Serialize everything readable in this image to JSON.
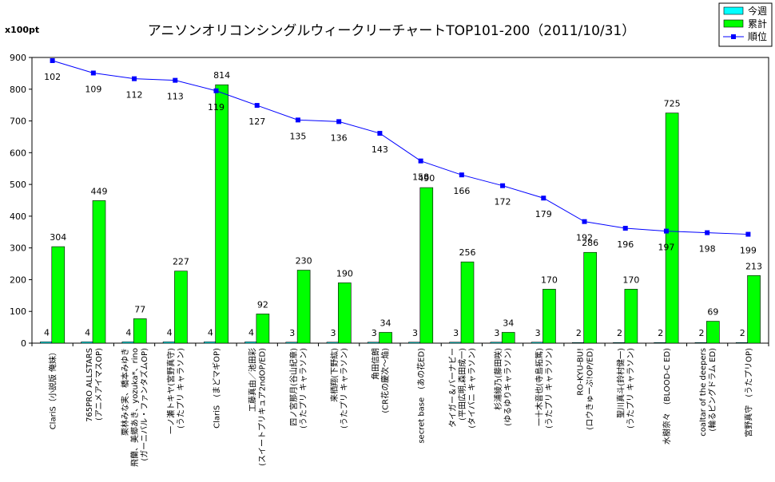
{
  "chart_data": {
    "type": "bar",
    "title": "アニソンオリコンシングルウィークリーチャートTOP101-200（2011/10/31）",
    "unit_label": "x100pt",
    "ylim": [
      0,
      900
    ],
    "yticks": [
      0,
      100,
      200,
      300,
      400,
      500,
      600,
      700,
      800,
      900
    ],
    "categories": [
      [
        "ClariS（小説版 俺妹）"
      ],
      [
        "765PRO ALLSTARS",
        "(アニメアイマスOP)"
      ],
      [
        "栗林みな実、橋本みゆき",
        "飛蘭、美郷あき、yozuka*、rino",
        "(ガーニバル・ファンタズムOP)"
      ],
      [
        "一ノ瀬トキヤ(宮野真守)",
        "(うたプリ キャラソン)"
      ],
      [
        "ClariS　(まどマギOP)"
      ],
      [
        "工藤真由／池田彩",
        "(スイートプリキュア2ndOP/ED)"
      ],
      [
        "四ノ宮那月(谷山紀章)",
        "(うたプリ キャラソン)"
      ],
      [
        "来栖翔(下野紘)",
        "(うたプリ キャラソン)"
      ],
      [
        "角田信朗",
        "(CR花の慶次〜焔)"
      ],
      [
        "secret base　(あの花ED)"
      ],
      [
        "タイガー＆バーナビー",
        "(平田広明,森田成一)",
        "(タイバニ キャラソン)"
      ],
      [
        "杉浦綾乃(藤田咲)",
        "(ゆるゆりキャラソン)"
      ],
      [
        "一十木音也(寺島拓篤)",
        "(うたプリ キャラソン)"
      ],
      [
        "RO-KYU-BU!",
        "(ロウきゅーぶ!OP/ED)"
      ],
      [
        "聖川真斗(鈴村健一)",
        "(うたプリ キャラソン)"
      ],
      [
        "水樹奈々　(BLOOD-C ED)"
      ],
      [
        "coaltar of the deepers",
        "(輪るピングドラム ED)"
      ],
      [
        "宮野真守　(うたプリOP)"
      ]
    ],
    "series": [
      {
        "name": "今週",
        "kind": "bar",
        "values": [
          4,
          4,
          4,
          4,
          4,
          4,
          3,
          3,
          3,
          3,
          3,
          3,
          3,
          2,
          2,
          2,
          2,
          2
        ]
      },
      {
        "name": "累計",
        "kind": "bar",
        "values": [
          304,
          449,
          77,
          227,
          814,
          92,
          230,
          190,
          34,
          490,
          256,
          34,
          170,
          286,
          170,
          725,
          69,
          213
        ]
      },
      {
        "name": "順位",
        "kind": "line",
        "labels": [
          102,
          109,
          112,
          113,
          119,
          127,
          135,
          136,
          143,
          158,
          166,
          172,
          179,
          192,
          196,
          197,
          198,
          199
        ],
        "values": [
          890,
          851,
          833,
          828,
          795,
          749,
          703,
          698,
          661,
          574,
          530,
          496,
          457,
          383,
          362,
          353,
          348,
          343
        ]
      }
    ],
    "legend_position": "top-right",
    "grid": false,
    "colors": {
      "today": "#00ffff",
      "total": "#00ff00",
      "rank": "#0000ff"
    }
  }
}
